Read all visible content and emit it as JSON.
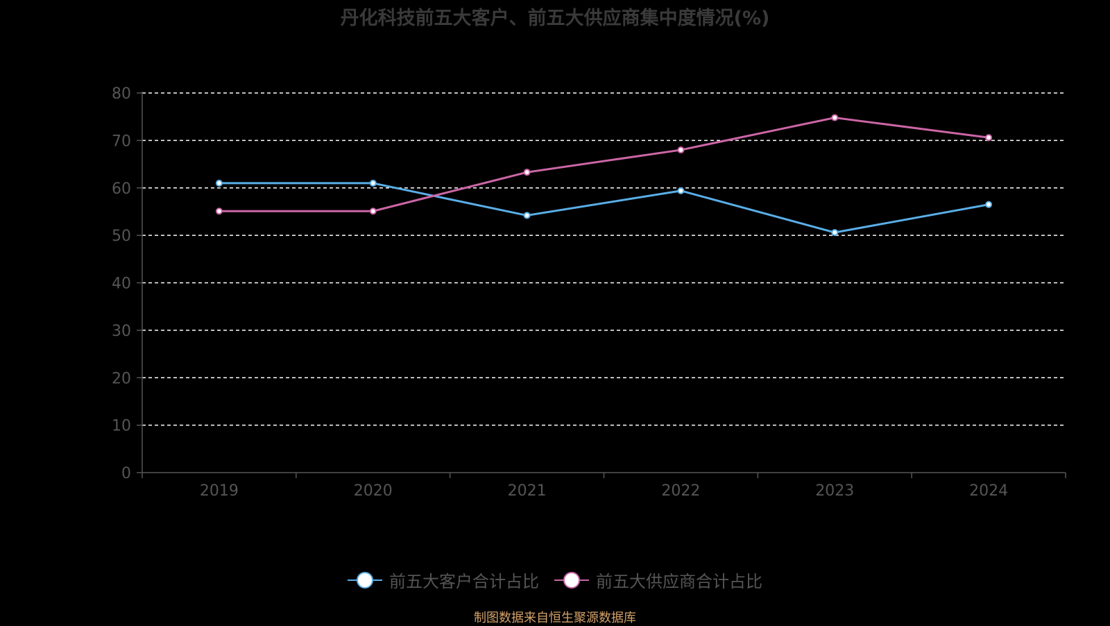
{
  "chart_data": {
    "type": "line",
    "title": "丹化科技前五大客户、前五大供应商集中度情况(%)",
    "xlabel": "",
    "ylabel": "",
    "categories": [
      "2019",
      "2020",
      "2021",
      "2022",
      "2023",
      "2024"
    ],
    "ylim": [
      0,
      80
    ],
    "yticks": [
      0,
      10,
      20,
      30,
      40,
      50,
      60,
      70,
      80
    ],
    "grid": true,
    "grid_style": "dashed",
    "legend_position": "bottom-center",
    "series": [
      {
        "name": "前五大客户合计占比",
        "color": "#5aaee8",
        "values": [
          61.0,
          61.0,
          54.2,
          59.4,
          50.6,
          56.5
        ]
      },
      {
        "name": "前五大供应商合计占比",
        "color": "#cc66a6",
        "values": [
          55.1,
          55.1,
          63.3,
          68.0,
          74.8,
          70.6
        ]
      }
    ]
  },
  "source_note": "制图数据来自恒生聚源数据库",
  "colors": {
    "background": "#000000",
    "axis": "#555555",
    "grid": "#ffffff",
    "tick_label": "#555555",
    "title": "#3a3a3a",
    "source_note": "#d4a26a"
  }
}
